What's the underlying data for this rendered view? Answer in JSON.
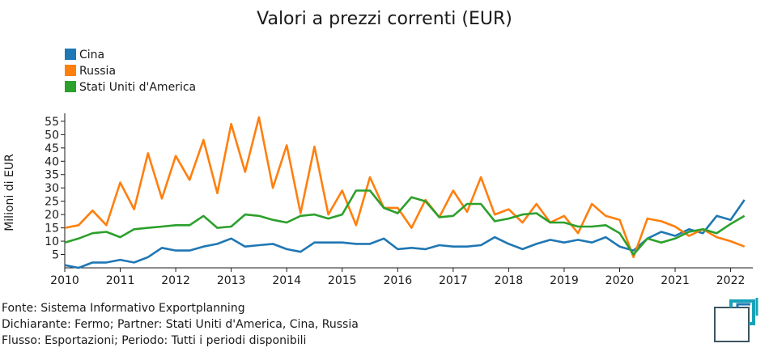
{
  "chart_data": {
    "type": "line",
    "title": "Valori a prezzi correnti (EUR)",
    "ylabel": "Milioni di EUR",
    "xlabel": "",
    "xlim": [
      2010.0,
      2022.4
    ],
    "ylim": [
      0,
      58
    ],
    "x_ticks": [
      "2010",
      "2011",
      "2012",
      "2013",
      "2014",
      "2015",
      "2016",
      "2017",
      "2018",
      "2019",
      "2020",
      "2021",
      "2022"
    ],
    "y_ticks": [
      5,
      10,
      15,
      20,
      25,
      30,
      35,
      40,
      45,
      50,
      55
    ],
    "grid": false,
    "legend_position": "top-left",
    "x": [
      2010.0,
      2010.25,
      2010.5,
      2010.75,
      2011.0,
      2011.25,
      2011.5,
      2011.75,
      2012.0,
      2012.25,
      2012.5,
      2012.75,
      2013.0,
      2013.25,
      2013.5,
      2013.75,
      2014.0,
      2014.25,
      2014.5,
      2014.75,
      2015.0,
      2015.25,
      2015.5,
      2015.75,
      2016.0,
      2016.25,
      2016.5,
      2016.75,
      2017.0,
      2017.25,
      2017.5,
      2017.75,
      2018.0,
      2018.25,
      2018.5,
      2018.75,
      2019.0,
      2019.25,
      2019.5,
      2019.75,
      2020.0,
      2020.25,
      2020.5,
      2020.75,
      2021.0,
      2021.25,
      2021.5,
      2021.75,
      2022.0,
      2022.25
    ],
    "series": [
      {
        "name": "Cina",
        "color": "#1f77b4",
        "values": [
          1,
          0,
          2,
          2,
          3,
          2,
          4,
          7.5,
          6.5,
          6.5,
          8,
          9,
          11,
          8,
          8.5,
          9,
          7,
          6,
          9.5,
          9.5,
          9.5,
          9,
          9,
          11,
          7,
          7.5,
          7,
          8.5,
          8,
          8,
          8.5,
          11.5,
          9,
          7,
          9,
          10.5,
          9.5,
          10.5,
          9.5,
          11.5,
          8,
          6.5,
          11,
          13.5,
          12,
          14.5,
          13,
          19.5,
          18,
          25.5
        ]
      },
      {
        "name": "Russia",
        "color": "#ff7f0e",
        "values": [
          15,
          16,
          21.5,
          16,
          32,
          22,
          43,
          26,
          42,
          33,
          48,
          28,
          54,
          36,
          56.5,
          30,
          46,
          20.5,
          45.5,
          20,
          29,
          16,
          34,
          22.5,
          22.5,
          15,
          25.5,
          19,
          29,
          21,
          34,
          20,
          22,
          17,
          24,
          17,
          19.5,
          13,
          24,
          19.5,
          18,
          4,
          18.5,
          17.5,
          15.5,
          12,
          14.5,
          11.5,
          10,
          8
        ]
      },
      {
        "name": "Stati Uniti d'America",
        "color": "#2ca02c",
        "values": [
          9.5,
          11,
          13,
          13.5,
          11.5,
          14.5,
          15,
          15.5,
          16,
          16,
          19.5,
          15,
          15.5,
          20,
          19.5,
          18,
          17,
          19.5,
          20,
          18.5,
          20,
          29,
          29,
          22.5,
          20.5,
          26.5,
          25,
          19,
          19.5,
          24,
          24,
          17.5,
          18.5,
          20,
          20.5,
          17,
          17,
          15.5,
          15.5,
          16,
          13,
          5,
          11,
          9.5,
          11,
          13.5,
          14.5,
          13,
          16.5,
          19.5
        ]
      }
    ]
  },
  "footer": {
    "source": "Fonte: Sistema Informativo Exportplanning",
    "declarant": "Dichiarante: Fermo; Partner: Stati Uniti d'America, Cina, Russia",
    "flow": "Flusso: Esportazioni; Periodo: Tutti i periodi disponibili"
  },
  "logo": {
    "name": "exportplanning-logo-icon",
    "colors": [
      "#1f77b4",
      "#17a2b8",
      "#2f4f4f"
    ]
  }
}
